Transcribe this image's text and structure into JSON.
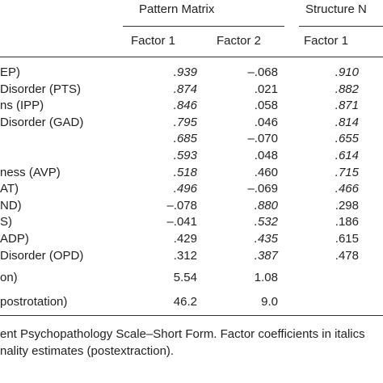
{
  "table": {
    "group_headers": [
      "Pattern Matrix",
      "Structure N"
    ],
    "column_headers": [
      "Factor 1",
      "Factor 2",
      "Factor 1"
    ],
    "rows": [
      {
        "label": "EP)",
        "cells": [
          {
            "text": ".939",
            "italic": true
          },
          {
            "text": "–.068",
            "italic": false
          },
          {
            "text": ".910",
            "italic": true
          }
        ]
      },
      {
        "label": "Disorder (PTS)",
        "cells": [
          {
            "text": ".874",
            "italic": true
          },
          {
            "text": ".021",
            "italic": false
          },
          {
            "text": ".882",
            "italic": true
          }
        ]
      },
      {
        "label": "ns (IPP)",
        "cells": [
          {
            "text": ".846",
            "italic": true
          },
          {
            "text": ".058",
            "italic": false
          },
          {
            "text": ".871",
            "italic": true
          }
        ]
      },
      {
        "label": "Disorder (GAD)",
        "cells": [
          {
            "text": ".795",
            "italic": true
          },
          {
            "text": ".046",
            "italic": false
          },
          {
            "text": ".814",
            "italic": true
          }
        ]
      },
      {
        "label": null,
        "cells": [
          {
            "text": ".685",
            "italic": true
          },
          {
            "text": "–.070",
            "italic": false
          },
          {
            "text": ".655",
            "italic": true
          }
        ]
      },
      {
        "label": null,
        "cells": [
          {
            "text": ".593",
            "italic": true
          },
          {
            "text": ".048",
            "italic": false
          },
          {
            "text": ".614",
            "italic": true
          }
        ]
      },
      {
        "label": "ness (AVP)",
        "cells": [
          {
            "text": ".518",
            "italic": true
          },
          {
            "text": ".460",
            "italic": false
          },
          {
            "text": ".715",
            "italic": true
          }
        ]
      },
      {
        "label": "AT)",
        "cells": [
          {
            "text": ".496",
            "italic": true
          },
          {
            "text": "–.069",
            "italic": false
          },
          {
            "text": ".466",
            "italic": true
          }
        ]
      },
      {
        "label": "ND)",
        "cells": [
          {
            "text": "–.078",
            "italic": false
          },
          {
            "text": ".880",
            "italic": true
          },
          {
            "text": ".298",
            "italic": false
          }
        ]
      },
      {
        "label": "S)",
        "cells": [
          {
            "text": "–.041",
            "italic": false
          },
          {
            "text": ".532",
            "italic": true
          },
          {
            "text": ".186",
            "italic": false
          }
        ]
      },
      {
        "label": "ADP)",
        "cells": [
          {
            "text": ".429",
            "italic": false
          },
          {
            "text": ".435",
            "italic": true
          },
          {
            "text": ".615",
            "italic": false
          }
        ]
      },
      {
        "label": "Disorder (OPD)",
        "cells": [
          {
            "text": ".312",
            "italic": false
          },
          {
            "text": ".387",
            "italic": true
          },
          {
            "text": ".478",
            "italic": false
          }
        ]
      },
      {
        "label": "on)",
        "cells": [
          {
            "text": "5.54",
            "italic": false
          },
          {
            "text": "1.08",
            "italic": false
          }
        ]
      },
      {
        "label": "postrotation)",
        "cells": [
          {
            "text": "46.2",
            "italic": false
          },
          {
            "text": "9.0",
            "italic": false
          }
        ]
      }
    ],
    "footnote": [
      "ent Psychopathology Scale–Short Form. Factor coefficients in italics",
      "nality estimates (postextraction)."
    ]
  }
}
